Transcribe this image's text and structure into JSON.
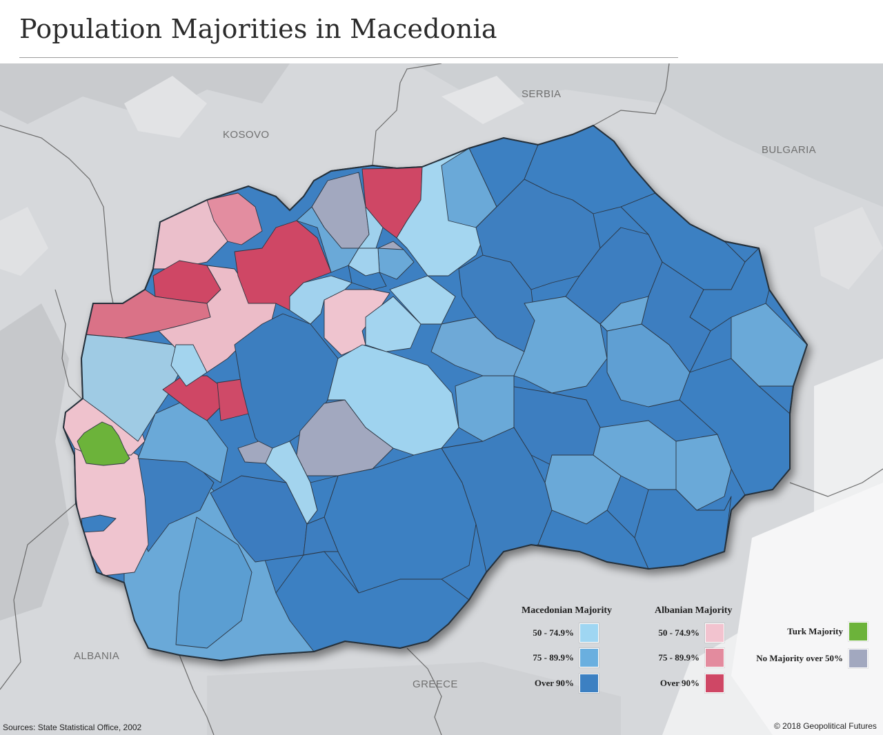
{
  "title": "Population Majorities in Macedonia",
  "map_labels": {
    "serbia": "SERBIA",
    "kosovo": "KOSOVO",
    "bulgaria": "BULGARIA",
    "albania": "ALBANIA",
    "greece": "GREECE"
  },
  "legend": {
    "macedonian": {
      "title": "Macedonian Majority",
      "items": [
        {
          "label": "50 - 74.9%",
          "color": "#9fd6f2"
        },
        {
          "label": "75 - 89.9%",
          "color": "#6aafdf"
        },
        {
          "label": "Over 90%",
          "color": "#3c80c2"
        }
      ]
    },
    "albanian": {
      "title": "Albanian Majority",
      "items": [
        {
          "label": "50 - 74.9%",
          "color": "#f2c3cf"
        },
        {
          "label": "75 - 89.9%",
          "color": "#e38b9e"
        },
        {
          "label": "Over 90%",
          "color": "#cf4765"
        }
      ]
    },
    "other": [
      {
        "label": "Turk Majority",
        "color": "#6cb33a"
      },
      {
        "label": "No Majority over 50%",
        "color": "#a2a8bf"
      }
    ]
  },
  "footer": {
    "source": "Sources: State Statistical Office, 2002",
    "copyright": "© 2018 Geopolitical Futures"
  }
}
